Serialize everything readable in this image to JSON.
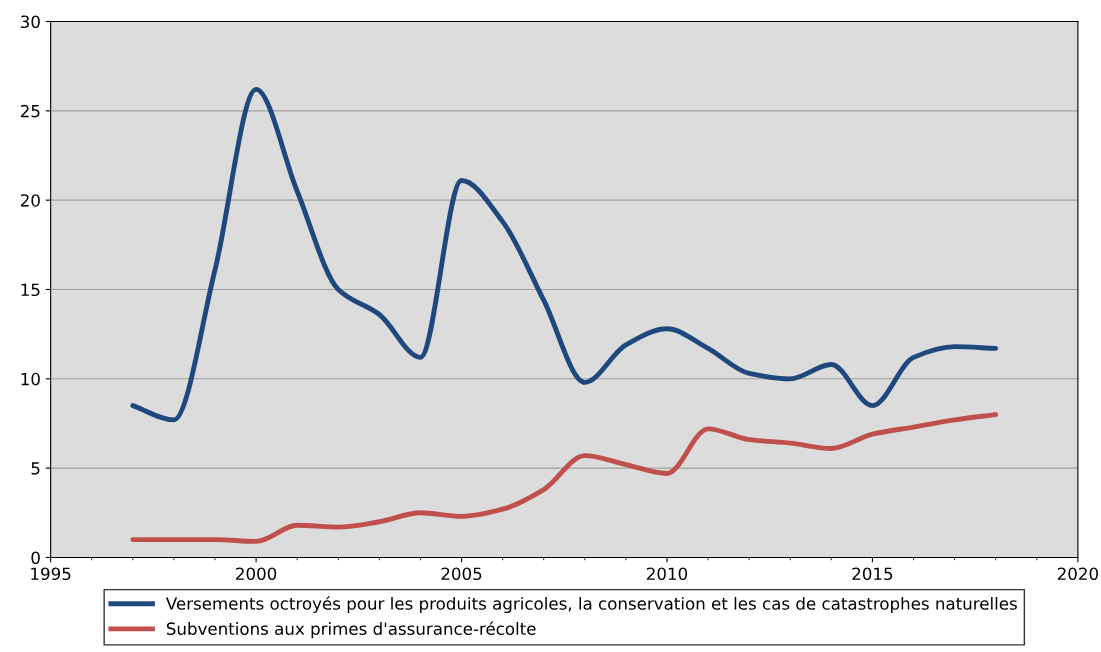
{
  "chart_data": {
    "type": "line",
    "x": [
      1997,
      1998,
      1999,
      2000,
      2001,
      2002,
      2003,
      2004,
      2005,
      2006,
      2007,
      2008,
      2009,
      2010,
      2011,
      2012,
      2013,
      2014,
      2015,
      2016,
      2017,
      2018
    ],
    "series": [
      {
        "name": "Versements octroyés pour les produits agricoles, la conservation et les cas de catastrophes naturelles",
        "color": "#1f497d",
        "values": [
          8.5,
          7.7,
          16.1,
          26.2,
          20.5,
          15.0,
          13.6,
          11.2,
          21.1,
          18.8,
          14.4,
          9.8,
          11.9,
          12.8,
          11.7,
          10.3,
          10.0,
          10.8,
          8.5,
          11.2,
          11.8,
          11.7
        ]
      },
      {
        "name": "Subventions aux primes d'assurance-récolte",
        "color": "#c0504d",
        "values": [
          1.0,
          1.0,
          1.0,
          0.9,
          1.8,
          1.7,
          2.0,
          2.5,
          2.3,
          2.7,
          3.8,
          5.7,
          5.2,
          4.7,
          7.2,
          6.6,
          6.4,
          6.1,
          6.9,
          7.3,
          7.7,
          8.0
        ]
      }
    ],
    "xlim": [
      1995,
      2020
    ],
    "xticks": [
      1995,
      2000,
      2005,
      2010,
      2015,
      2020
    ],
    "ylim": [
      0,
      30
    ],
    "yticks": [
      0,
      5,
      10,
      15,
      20,
      25,
      30
    ],
    "grid": "y",
    "legend": "bottom",
    "marker": "none",
    "line_style": "solid"
  }
}
